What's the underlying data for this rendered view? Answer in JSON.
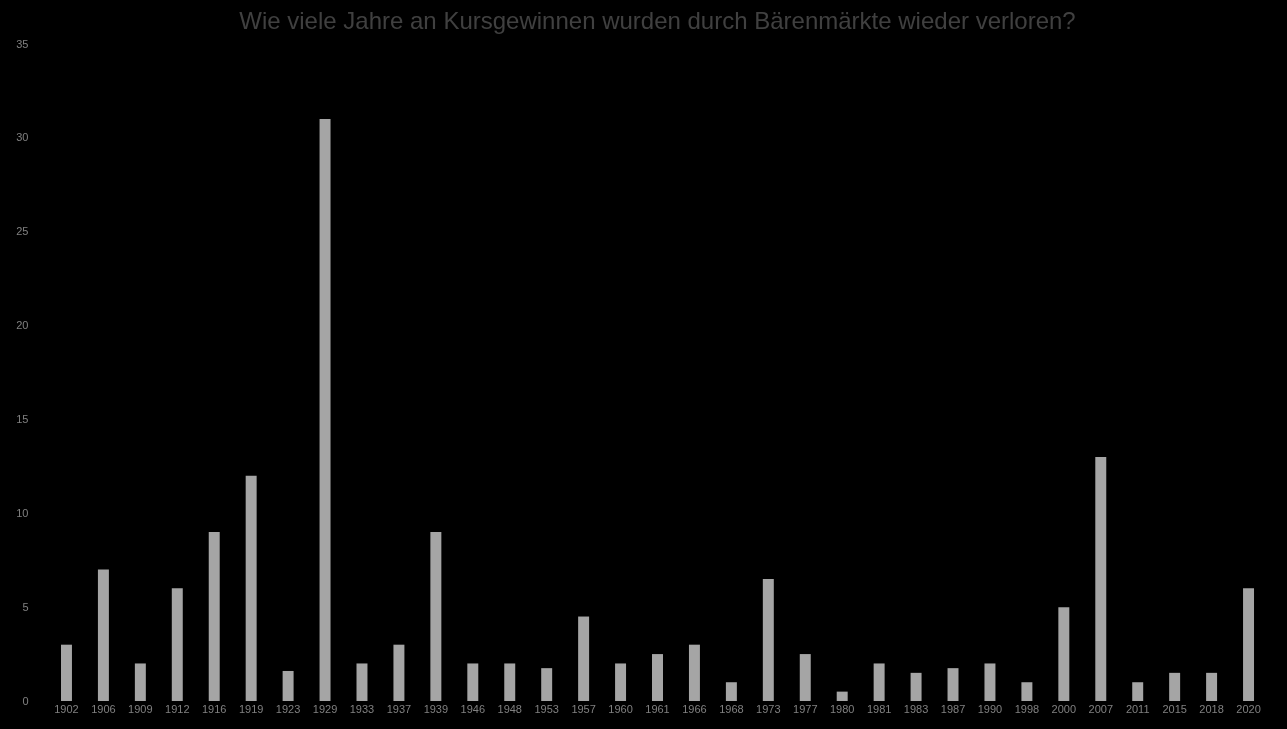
{
  "chart_data": {
    "type": "bar",
    "title": "Wie viele Jahre an Kursgewinnen wurden durch Bärenmärkte wieder verloren?",
    "categories": [
      "1902",
      "1906",
      "1909",
      "1912",
      "1916",
      "1919",
      "1923",
      "1929",
      "1933",
      "1937",
      "1939",
      "1946",
      "1948",
      "1953",
      "1957",
      "1960",
      "1961",
      "1966",
      "1968",
      "1973",
      "1977",
      "1980",
      "1981",
      "1983",
      "1987",
      "1990",
      "1998",
      "2000",
      "2007",
      "2011",
      "2015",
      "2018",
      "2020"
    ],
    "values": [
      3,
      7,
      2,
      6,
      9,
      12,
      1.6,
      31,
      2,
      3,
      9,
      2,
      2,
      1.75,
      4.5,
      2,
      2.5,
      3,
      1,
      6.5,
      2.5,
      0.5,
      2,
      1.5,
      1.75,
      2,
      1,
      5,
      13,
      1,
      1.5,
      1.5,
      6
    ],
    "color": "#a5a5a5",
    "ylim": [
      0,
      35
    ],
    "yticks": [
      0,
      5,
      10,
      15,
      20,
      25,
      30,
      35
    ],
    "grid": false
  }
}
